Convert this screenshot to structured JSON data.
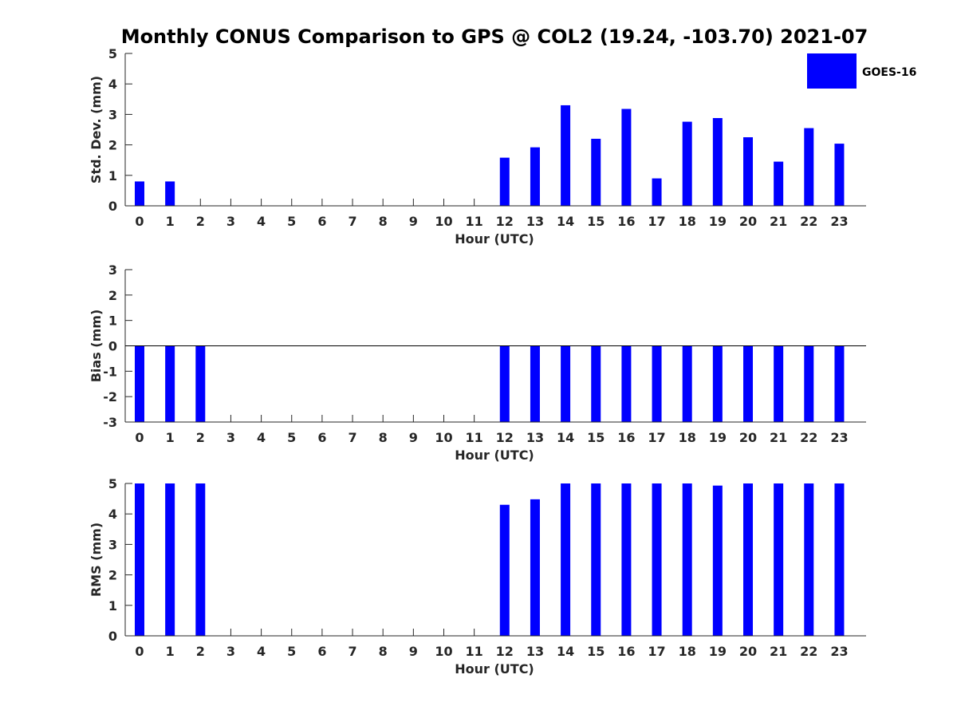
{
  "figure": {
    "title": "Monthly CONUS Comparison to GPS @ COL2 (19.24, -103.70) 2021-07",
    "legend_label": "GOES-16",
    "bar_color": "#0000ff",
    "axis_color": "#262626"
  },
  "chart_data": [
    {
      "type": "bar",
      "name": "std-dev",
      "xlabel": "Hour (UTC)",
      "ylabel": "Std. Dev. (mm)",
      "categories": [
        "0",
        "1",
        "2",
        "3",
        "4",
        "5",
        "6",
        "7",
        "8",
        "9",
        "10",
        "11",
        "12",
        "13",
        "14",
        "15",
        "16",
        "17",
        "18",
        "19",
        "20",
        "21",
        "22",
        "23"
      ],
      "ylim": [
        0,
        5
      ],
      "yticks": [
        0,
        1,
        2,
        3,
        4,
        5
      ],
      "series": [
        {
          "name": "GOES-16",
          "values": [
            0.8,
            0.8,
            0,
            0,
            0,
            0,
            0,
            0,
            0,
            0,
            0,
            0,
            1.58,
            1.92,
            3.3,
            2.2,
            3.18,
            0.9,
            2.76,
            2.88,
            2.25,
            1.45,
            2.55,
            2.04
          ]
        }
      ],
      "legend": "top-right",
      "grid": false
    },
    {
      "type": "bar",
      "name": "bias",
      "xlabel": "Hour (UTC)",
      "ylabel": "Bias (mm)",
      "categories": [
        "0",
        "1",
        "2",
        "3",
        "4",
        "5",
        "6",
        "7",
        "8",
        "9",
        "10",
        "11",
        "12",
        "13",
        "14",
        "15",
        "16",
        "17",
        "18",
        "19",
        "20",
        "21",
        "22",
        "23"
      ],
      "ylim": [
        -3,
        3
      ],
      "yticks": [
        -3,
        -2,
        -1,
        0,
        1,
        2,
        3
      ],
      "series": [
        {
          "name": "GOES-16",
          "values": [
            -3,
            -3,
            -3,
            0,
            0,
            0,
            0,
            0,
            0,
            0,
            0,
            0,
            -3,
            -3,
            -3,
            -3,
            -3,
            -3,
            -3,
            -3,
            -3,
            -3,
            -3,
            -3
          ]
        }
      ],
      "grid": false
    },
    {
      "type": "bar",
      "name": "rms",
      "xlabel": "Hour (UTC)",
      "ylabel": "RMS (mm)",
      "categories": [
        "0",
        "1",
        "2",
        "3",
        "4",
        "5",
        "6",
        "7",
        "8",
        "9",
        "10",
        "11",
        "12",
        "13",
        "14",
        "15",
        "16",
        "17",
        "18",
        "19",
        "20",
        "21",
        "22",
        "23"
      ],
      "ylim": [
        0,
        5
      ],
      "yticks": [
        0,
        1,
        2,
        3,
        4,
        5
      ],
      "series": [
        {
          "name": "GOES-16",
          "values": [
            5,
            5,
            5,
            0,
            0,
            0,
            0,
            0,
            0,
            0,
            0,
            0,
            4.3,
            4.48,
            5,
            5,
            5,
            5,
            5,
            4.93,
            5,
            5,
            5,
            5
          ]
        }
      ],
      "grid": false
    }
  ]
}
